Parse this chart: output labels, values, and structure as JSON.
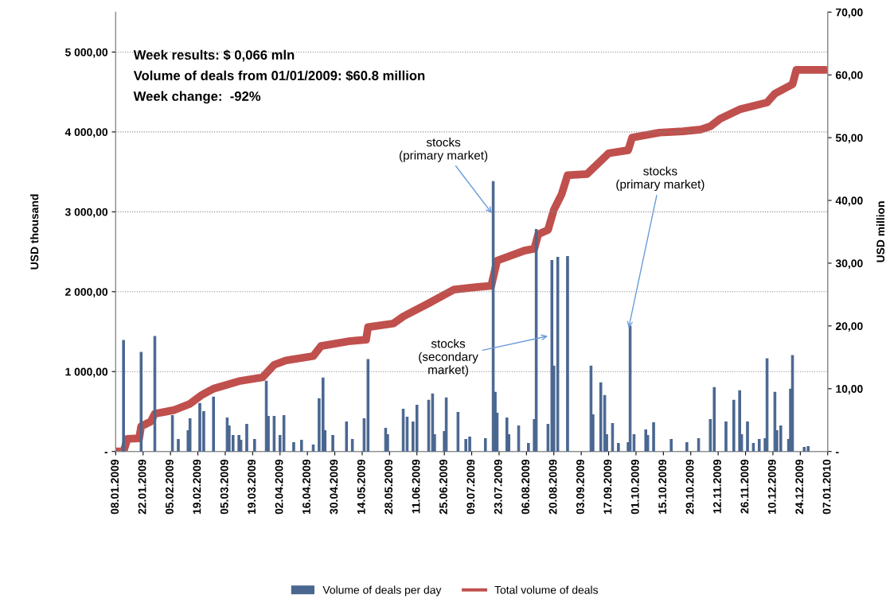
{
  "chart_data": {
    "type": "bar",
    "ylabel": "USD thousand",
    "y2label": "USD million",
    "xlim": [
      "2009-01-08",
      "2010-01-07"
    ],
    "xticks": [
      {
        "value": "2009-01-08",
        "label": "08.01.2009"
      },
      {
        "value": "2009-01-22",
        "label": "22.01.2009"
      },
      {
        "value": "2009-02-05",
        "label": "05.02.2009"
      },
      {
        "value": "2009-02-19",
        "label": "19.02.2009"
      },
      {
        "value": "2009-03-05",
        "label": "05.03.2009"
      },
      {
        "value": "2009-03-19",
        "label": "19.03.2009"
      },
      {
        "value": "2009-04-02",
        "label": "02.04.2009"
      },
      {
        "value": "2009-04-16",
        "label": "16.04.2009"
      },
      {
        "value": "2009-04-30",
        "label": "30.04.2009"
      },
      {
        "value": "2009-05-14",
        "label": "14.05.2009"
      },
      {
        "value": "2009-05-28",
        "label": "28.05.2009"
      },
      {
        "value": "2009-06-11",
        "label": "11.06.2009"
      },
      {
        "value": "2009-06-25",
        "label": "25.06.2009"
      },
      {
        "value": "2009-07-09",
        "label": "09.07.2009"
      },
      {
        "value": "2009-07-23",
        "label": "23.07.2009"
      },
      {
        "value": "2009-08-06",
        "label": "06.08.2009"
      },
      {
        "value": "2009-08-20",
        "label": "20.08.2009"
      },
      {
        "value": "2009-09-03",
        "label": "03.09.2009"
      },
      {
        "value": "2009-09-17",
        "label": "17.09.2009"
      },
      {
        "value": "2009-10-01",
        "label": "01.10.2009"
      },
      {
        "value": "2009-10-15",
        "label": "15.10.2009"
      },
      {
        "value": "2009-10-29",
        "label": "29.10.2009"
      },
      {
        "value": "2009-11-12",
        "label": "12.11.2009"
      },
      {
        "value": "2009-11-26",
        "label": "26.11.2009"
      },
      {
        "value": "2009-12-10",
        "label": "10.12.2009"
      },
      {
        "value": "2009-12-24",
        "label": "24.12.2009"
      },
      {
        "value": "2010-01-07",
        "label": "07.01.2010"
      }
    ],
    "ylim": [
      0,
      5500
    ],
    "yticks": [
      {
        "value": 0,
        "label": "-"
      },
      {
        "value": 1000,
        "label": "1 000,00"
      },
      {
        "value": 2000,
        "label": "2 000,00"
      },
      {
        "value": 3000,
        "label": "3 000,00"
      },
      {
        "value": 4000,
        "label": "4 000,00"
      },
      {
        "value": 5000,
        "label": "5 000,00"
      }
    ],
    "y2lim": [
      0,
      70
    ],
    "y2ticks": [
      {
        "value": 0,
        "label": "-"
      },
      {
        "value": 10,
        "label": "10,00"
      },
      {
        "value": 20,
        "label": "20,00"
      },
      {
        "value": 30,
        "label": "30,00"
      },
      {
        "value": 40,
        "label": "40,00"
      },
      {
        "value": 50,
        "label": "50,00"
      },
      {
        "value": 60,
        "label": "60,00"
      },
      {
        "value": 70,
        "label": "70,00"
      }
    ],
    "grid": "y",
    "legend": "bottom",
    "series": [
      {
        "name": "Volume of deals per day",
        "color": "#4a6790",
        "x": [
          "2009-01-12",
          "2009-01-21",
          "2009-01-28",
          "2009-02-06",
          "2009-02-09",
          "2009-02-14",
          "2009-02-15",
          "2009-02-20",
          "2009-02-22",
          "2009-02-27",
          "2009-03-06",
          "2009-03-07",
          "2009-03-09",
          "2009-03-12",
          "2009-03-13",
          "2009-03-16",
          "2009-03-20",
          "2009-03-26",
          "2009-03-27",
          "2009-03-30",
          "2009-04-02",
          "2009-04-04",
          "2009-04-09",
          "2009-04-13",
          "2009-04-19",
          "2009-04-22",
          "2009-04-24",
          "2009-04-25",
          "2009-04-29",
          "2009-05-06",
          "2009-05-09",
          "2009-05-15",
          "2009-05-17",
          "2009-05-26",
          "2009-05-27",
          "2009-06-04",
          "2009-06-06",
          "2009-06-09",
          "2009-06-11",
          "2009-06-17",
          "2009-06-19",
          "2009-06-20",
          "2009-06-25",
          "2009-06-26",
          "2009-07-02",
          "2009-07-06",
          "2009-07-08",
          "2009-07-16",
          "2009-07-20",
          "2009-07-21",
          "2009-07-22",
          "2009-07-27",
          "2009-07-28",
          "2009-08-02",
          "2009-08-07",
          "2009-08-10",
          "2009-08-11",
          "2009-08-17",
          "2009-08-19",
          "2009-08-20",
          "2009-08-22",
          "2009-08-27",
          "2009-09-08",
          "2009-09-09",
          "2009-09-13",
          "2009-09-15",
          "2009-09-16",
          "2009-09-19",
          "2009-09-22",
          "2009-09-27",
          "2009-09-28",
          "2009-09-30",
          "2009-10-06",
          "2009-10-07",
          "2009-10-10",
          "2009-10-19",
          "2009-10-27",
          "2009-11-02",
          "2009-11-08",
          "2009-11-10",
          "2009-11-16",
          "2009-11-20",
          "2009-11-23",
          "2009-11-24",
          "2009-11-27",
          "2009-11-30",
          "2009-12-03",
          "2009-12-06",
          "2009-12-07",
          "2009-12-11",
          "2009-12-12",
          "2009-12-14",
          "2009-12-18",
          "2009-12-19",
          "2009-12-20",
          "2009-12-26",
          "2009-12-28"
        ],
        "values": [
          1390,
          1240,
          1440,
          450,
          150,
          260,
          410,
          600,
          500,
          680,
          420,
          320,
          200,
          200,
          140,
          340,
          150,
          880,
          440,
          440,
          200,
          450,
          110,
          140,
          80,
          660,
          920,
          260,
          200,
          370,
          150,
          410,
          1150,
          290,
          210,
          530,
          430,
          370,
          580,
          640,
          720,
          210,
          250,
          670,
          490,
          150,
          180,
          160,
          3380,
          740,
          480,
          420,
          210,
          320,
          100,
          400,
          2780,
          340,
          2390,
          1070,
          2430,
          2440,
          1070,
          460,
          860,
          700,
          210,
          350,
          100,
          110,
          1570,
          210,
          270,
          200,
          360,
          150,
          110,
          160,
          400,
          800,
          370,
          640,
          760,
          210,
          370,
          100,
          150,
          160,
          1160,
          740,
          260,
          320,
          150,
          780,
          1200,
          50,
          60
        ]
      },
      {
        "name": "Total volume of deals",
        "type": "line",
        "axis": "y2",
        "color": "#c0504d",
        "x": [
          "2009-01-08",
          "2009-01-12",
          "2009-01-14",
          "2009-01-20",
          "2009-01-21",
          "2009-01-26",
          "2009-01-28",
          "2009-02-07",
          "2009-02-15",
          "2009-02-21",
          "2009-02-27",
          "2009-03-12",
          "2009-03-24",
          "2009-03-30",
          "2009-04-05",
          "2009-04-19",
          "2009-04-23",
          "2009-05-08",
          "2009-05-16",
          "2009-05-17",
          "2009-05-30",
          "2009-06-04",
          "2009-06-17",
          "2009-06-30",
          "2009-07-12",
          "2009-07-19",
          "2009-07-22",
          "2009-08-05",
          "2009-08-10",
          "2009-08-12",
          "2009-08-17",
          "2009-08-20",
          "2009-08-24",
          "2009-08-27",
          "2009-09-06",
          "2009-09-13",
          "2009-09-17",
          "2009-09-27",
          "2009-09-29",
          "2009-10-13",
          "2009-10-25",
          "2009-11-03",
          "2009-11-08",
          "2009-11-13",
          "2009-11-23",
          "2009-12-07",
          "2009-12-11",
          "2009-12-20",
          "2009-12-22",
          "2010-01-06"
        ],
        "values": [
          0,
          0,
          2,
          2.1,
          4,
          4.8,
          6,
          6.6,
          7.6,
          9,
          10,
          11.2,
          11.8,
          13.8,
          14.5,
          15.2,
          16.8,
          17.6,
          17.8,
          19.8,
          20.4,
          21.5,
          23.6,
          25.8,
          26.2,
          26.4,
          30.4,
          32,
          32.3,
          34.6,
          35.3,
          38.5,
          41,
          44,
          44.2,
          46.3,
          47.5,
          48,
          50,
          50.8,
          51,
          51.3,
          51.8,
          53,
          54.5,
          55.6,
          57,
          58.5,
          60.8,
          60.8
        ]
      }
    ],
    "annotations": [
      "Week results: $ 0,066 mln",
      "Volume of deals from 01/01/2009: $60.8 million",
      "Week change:  -92%",
      {
        "text": "stocks\n(primary market)",
        "x": "2009-07-20",
        "y": 2960
      },
      {
        "text": "stocks\n(secondary\nmarket)",
        "x": "2009-08-18",
        "y": 1450
      },
      {
        "text": "stocks\n(primary market)",
        "x": "2009-09-27",
        "y": 1520
      }
    ]
  }
}
